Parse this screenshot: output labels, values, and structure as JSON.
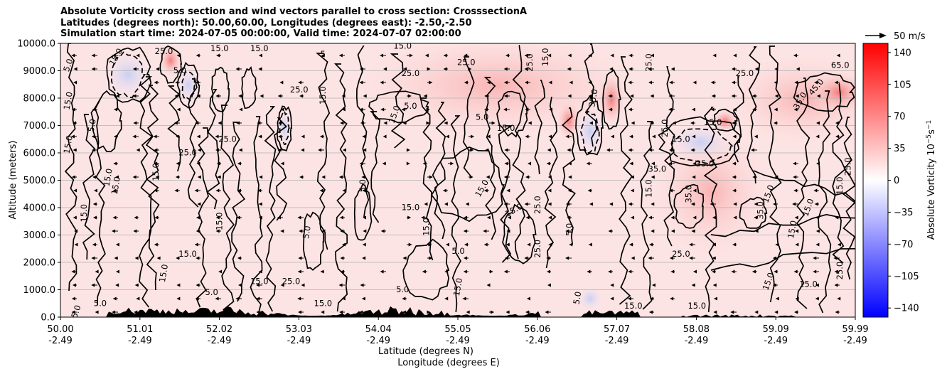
{
  "chart_data": {
    "type": "heatmap",
    "title_lines": [
      "Absolute Vorticity cross section and wind vectors parallel to cross section: CrosssectionA",
      "Latitudes (degrees north): 50.00,60.00, Longitudes (degrees east): -2.50,-2.50",
      "Simulation start time: 2024-07-05 00:00:00, Valid time: 2024-07-07 02:00:00"
    ],
    "ylabel": "Altitude (meters)",
    "xlabel_line1": "Latitude (degrees N)",
    "xlabel_line2": "Longitude (degrees E)",
    "ylim": [
      0,
      10000
    ],
    "xlim": [
      50.0,
      59.99
    ],
    "y_ticks": [
      0,
      1000,
      2000,
      3000,
      4000,
      5000,
      6000,
      7000,
      8000,
      9000,
      10000
    ],
    "y_tick_labels": [
      "0.0",
      "1000.0",
      "2000.0",
      "3000.0",
      "4000.0",
      "5000.0",
      "6000.0",
      "7000.0",
      "8000.0",
      "9000.0",
      "10000.0"
    ],
    "x_ticks": [
      {
        "lat": "50.00",
        "lon": "-2.49"
      },
      {
        "lat": "51.01",
        "lon": "-2.49"
      },
      {
        "lat": "52.02",
        "lon": "-2.49"
      },
      {
        "lat": "53.03",
        "lon": "-2.49"
      },
      {
        "lat": "54.04",
        "lon": "-2.49"
      },
      {
        "lat": "55.05",
        "lon": "-2.49"
      },
      {
        "lat": "56.06",
        "lon": "-2.49"
      },
      {
        "lat": "57.07",
        "lon": "-2.49"
      },
      {
        "lat": "58.08",
        "lon": "-2.49"
      },
      {
        "lat": "59.09",
        "lon": "-2.49"
      },
      {
        "lat": "59.99",
        "lon": "-2.49"
      }
    ],
    "grid": "horizontal",
    "colorbar": {
      "label": "Absolute Vorticity 10",
      "label_exponent": "−5",
      "label_unit": "s",
      "label_unit_exponent": "−1",
      "range": [
        -150,
        150
      ],
      "ticks": [
        140,
        105,
        70,
        35,
        0,
        -35,
        -70,
        -105,
        -140
      ],
      "tick_labels": [
        "140",
        "105",
        "70",
        "35",
        "0",
        "−35",
        "−70",
        "−105",
        "−140"
      ],
      "colormap": "bwr"
    },
    "quiver_key": {
      "label": "50 m/s",
      "value": 50
    },
    "contour_labels": [
      {
        "x": 50.1,
        "y": 9200,
        "text": "5.0",
        "rot": -70
      },
      {
        "x": 50.1,
        "y": 7900,
        "text": "15.0",
        "rot": -80
      },
      {
        "x": 50.1,
        "y": 6300,
        "text": "15.0",
        "rot": -80
      },
      {
        "x": 50.4,
        "y": 7000,
        "text": "5.0",
        "rot": -80
      },
      {
        "x": 50.7,
        "y": 9500,
        "text": "15.0",
        "rot": -60
      },
      {
        "x": 51.3,
        "y": 9700,
        "text": "25.0",
        "rot": 0
      },
      {
        "x": 51.5,
        "y": 9000,
        "text": "5.0",
        "rot": 0
      },
      {
        "x": 52.0,
        "y": 9800,
        "text": "15.0",
        "rot": 0
      },
      {
        "x": 52.5,
        "y": 9800,
        "text": "15.0",
        "rot": 0
      },
      {
        "x": 53.3,
        "y": 9600,
        "text": "5",
        "rot": 0
      },
      {
        "x": 53.0,
        "y": 8300,
        "text": "25.0",
        "rot": 0
      },
      {
        "x": 53.3,
        "y": 8100,
        "text": "15.0",
        "rot": -90
      },
      {
        "x": 54.3,
        "y": 9900,
        "text": "15.0",
        "rot": 0
      },
      {
        "x": 54.4,
        "y": 8900,
        "text": "25.0",
        "rot": 0
      },
      {
        "x": 54.2,
        "y": 7400,
        "text": "15.0",
        "rot": -70
      },
      {
        "x": 54.4,
        "y": 7700,
        "text": "5.0",
        "rot": 0
      },
      {
        "x": 51.6,
        "y": 6000,
        "text": "25.0",
        "rot": 0
      },
      {
        "x": 52.1,
        "y": 6500,
        "text": "25.0",
        "rot": 0
      },
      {
        "x": 51.2,
        "y": 5300,
        "text": "15.0",
        "rot": -90
      },
      {
        "x": 50.6,
        "y": 5100,
        "text": "15.0",
        "rot": -80
      },
      {
        "x": 50.7,
        "y": 4800,
        "text": "15.0",
        "rot": -80
      },
      {
        "x": 50.3,
        "y": 3800,
        "text": "15.0",
        "rot": -90
      },
      {
        "x": 52.0,
        "y": 3500,
        "text": "15.0",
        "rot": -90
      },
      {
        "x": 53.1,
        "y": 3100,
        "text": "5.0",
        "rot": -80
      },
      {
        "x": 51.6,
        "y": 2300,
        "text": "15.0",
        "rot": 0
      },
      {
        "x": 51.3,
        "y": 1600,
        "text": "15.0",
        "rot": -80
      },
      {
        "x": 51.9,
        "y": 900,
        "text": "5.0",
        "rot": 0
      },
      {
        "x": 52.5,
        "y": 1300,
        "text": "15.0",
        "rot": 0
      },
      {
        "x": 52.9,
        "y": 1300,
        "text": "25.0",
        "rot": 0
      },
      {
        "x": 53.8,
        "y": 4800,
        "text": "5.0",
        "rot": -90
      },
      {
        "x": 54.4,
        "y": 4000,
        "text": "15.0",
        "rot": 0
      },
      {
        "x": 54.6,
        "y": 3300,
        "text": "15.0",
        "rot": -90
      },
      {
        "x": 55.0,
        "y": 2400,
        "text": "5.0",
        "rot": 0
      },
      {
        "x": 55.3,
        "y": 4700,
        "text": "15.0",
        "rot": -60
      },
      {
        "x": 55.7,
        "y": 3900,
        "text": "15.0",
        "rot": -30
      },
      {
        "x": 55.6,
        "y": 6900,
        "text": "15.0",
        "rot": 0
      },
      {
        "x": 55.3,
        "y": 7300,
        "text": "5.0",
        "rot": 0
      },
      {
        "x": 55.1,
        "y": 9300,
        "text": "25.0",
        "rot": 0
      },
      {
        "x": 55.9,
        "y": 9300,
        "text": "25.0",
        "rot": -90
      },
      {
        "x": 56.1,
        "y": 9500,
        "text": "15.0",
        "rot": -90
      },
      {
        "x": 56.0,
        "y": 4100,
        "text": "25.0",
        "rot": -90
      },
      {
        "x": 56.0,
        "y": 2500,
        "text": "25.0",
        "rot": -90
      },
      {
        "x": 56.4,
        "y": 3200,
        "text": "5.0",
        "rot": -90
      },
      {
        "x": 56.7,
        "y": 8000,
        "text": "35.0",
        "rot": -80
      },
      {
        "x": 57.4,
        "y": 9300,
        "text": "25.0",
        "rot": -90
      },
      {
        "x": 57.6,
        "y": 6900,
        "text": "25.0",
        "rot": -90
      },
      {
        "x": 57.4,
        "y": 4700,
        "text": "15.0",
        "rot": -90
      },
      {
        "x": 57.5,
        "y": 5400,
        "text": "35.0",
        "rot": 0
      },
      {
        "x": 57.8,
        "y": 6500,
        "text": "15.0",
        "rot": 0
      },
      {
        "x": 57.8,
        "y": 2300,
        "text": "25.0",
        "rot": 0
      },
      {
        "x": 58.6,
        "y": 8900,
        "text": "25.0",
        "rot": 0
      },
      {
        "x": 58.2,
        "y": 7100,
        "text": "15.0",
        "rot": 0
      },
      {
        "x": 58.1,
        "y": 5600,
        "text": "35.0",
        "rot": 0
      },
      {
        "x": 57.9,
        "y": 4500,
        "text": "35.0",
        "rot": -90
      },
      {
        "x": 58.9,
        "y": 4500,
        "text": "15.0",
        "rot": -70
      },
      {
        "x": 58.8,
        "y": 3900,
        "text": "35.0",
        "rot": -90
      },
      {
        "x": 59.4,
        "y": 4000,
        "text": "15.0",
        "rot": -70
      },
      {
        "x": 59.2,
        "y": 3200,
        "text": "15.0",
        "rot": -80
      },
      {
        "x": 59.3,
        "y": 7900,
        "text": "35.0",
        "rot": -60
      },
      {
        "x": 59.5,
        "y": 8400,
        "text": "45.0",
        "rot": -50
      },
      {
        "x": 59.8,
        "y": 9200,
        "text": "65.0",
        "rot": 0
      },
      {
        "x": 59.9,
        "y": 5500,
        "text": "25.0",
        "rot": -90
      },
      {
        "x": 59.8,
        "y": 4800,
        "text": "15.0",
        "rot": -90
      },
      {
        "x": 59.8,
        "y": 1700,
        "text": "25.0",
        "rot": -90
      },
      {
        "x": 59.4,
        "y": 1200,
        "text": "15.0",
        "rot": 0
      },
      {
        "x": 58.9,
        "y": 1300,
        "text": "15.0",
        "rot": -70
      },
      {
        "x": 58.0,
        "y": 400,
        "text": "15.0",
        "rot": 0
      },
      {
        "x": 57.2,
        "y": 400,
        "text": "15.0",
        "rot": 0
      },
      {
        "x": 56.5,
        "y": 700,
        "text": "5.0",
        "rot": -80
      },
      {
        "x": 55.0,
        "y": 1100,
        "text": "15.0",
        "rot": -80
      },
      {
        "x": 54.3,
        "y": 1000,
        "text": "5.0",
        "rot": 0
      },
      {
        "x": 53.3,
        "y": 500,
        "text": "15.0",
        "rot": 0
      },
      {
        "x": 50.5,
        "y": 500,
        "text": "5.0",
        "rot": 0
      },
      {
        "x": 50.2,
        "y": 200,
        "text": "5.0",
        "rot": -70
      }
    ]
  }
}
